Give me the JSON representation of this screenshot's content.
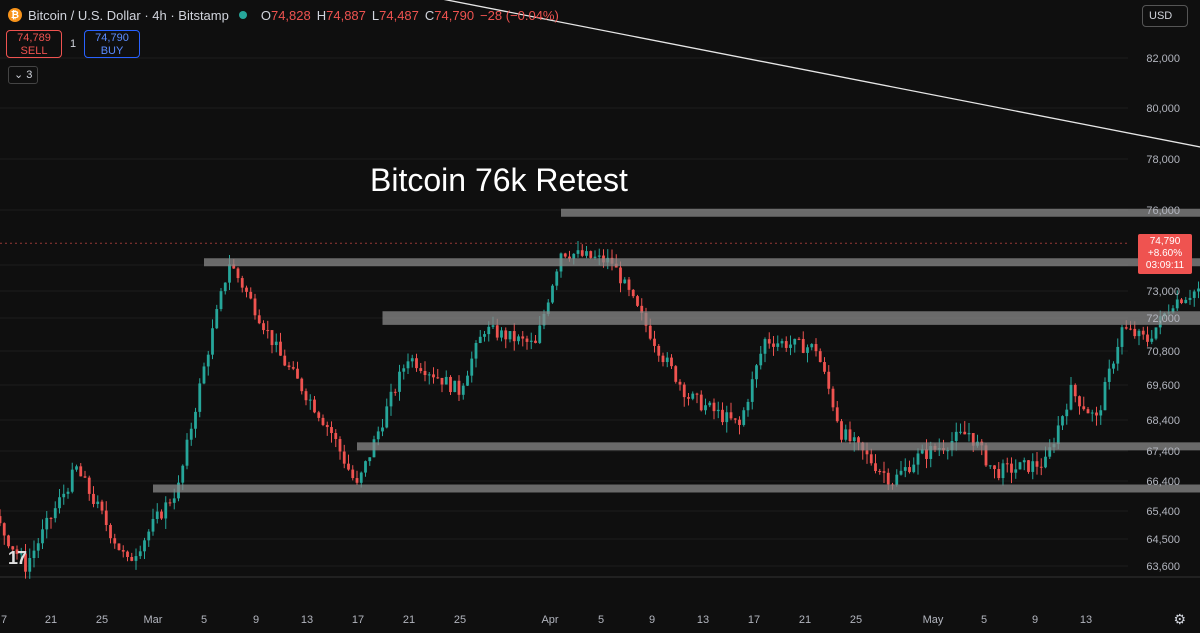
{
  "header": {
    "symbol": "Bitcoin / U.S. Dollar · 4h · Bitstamp",
    "open_label": "O",
    "open": "74,828",
    "high_label": "H",
    "high": "74,887",
    "low_label": "L",
    "low": "74,487",
    "close_label": "C",
    "close": "74,790",
    "change": "−28 (−0.04%)"
  },
  "trade": {
    "sell_price": "74,789",
    "sell_label": "SELL",
    "spread": "1",
    "buy_price": "74,790",
    "buy_label": "BUY"
  },
  "indicators_collapsed": "3",
  "currency": "USD",
  "price_label": {
    "price": "74,790",
    "change": "+8.60%",
    "countdown": "03:09:11"
  },
  "colors": {
    "up": "#26a69a",
    "down": "#ef5350",
    "zone": "#8a8a8a",
    "trendline": "#e6e6e6",
    "background": "#0f0f0f",
    "title": "#ffffff"
  },
  "chart_data": {
    "type": "candlestick",
    "title": "Bitcoin 76k Retest",
    "y_ticks": [
      82000,
      80000,
      78000,
      76000,
      74000,
      73000,
      72000,
      70800,
      69600,
      68400,
      67400,
      66400,
      65400,
      64500,
      63600
    ],
    "y_tick_labels": [
      "82,000",
      "80,000",
      "78,000",
      "76,000",
      "74,000",
      "73,000",
      "72,000",
      "70,800",
      "69,600",
      "68,400",
      "67,400",
      "66,400",
      "65,400",
      "64,500",
      "63,600"
    ],
    "x_ticks": [
      "7",
      "21",
      "25",
      "Mar",
      "5",
      "9",
      "13",
      "17",
      "21",
      "25",
      "Apr",
      "5",
      "9",
      "13",
      "17",
      "21",
      "25",
      "May",
      "5",
      "9",
      "13"
    ],
    "current_price": 74790,
    "close_path": [
      {
        "date": "Feb 15",
        "price": 68600
      },
      {
        "date": "Feb 18",
        "price": 67400
      },
      {
        "date": "Feb 20",
        "price": 68100
      },
      {
        "date": "Feb 22",
        "price": 66200
      },
      {
        "date": "Feb 24",
        "price": 63600
      },
      {
        "date": "Feb 26",
        "price": 66800
      },
      {
        "date": "Feb 28",
        "price": 63700
      },
      {
        "date": "Mar 2",
        "price": 66200
      },
      {
        "date": "Mar 3",
        "price": 70200
      },
      {
        "date": "Mar 4",
        "price": 74100
      },
      {
        "date": "Mar 6",
        "price": 70600
      },
      {
        "date": "Mar 8",
        "price": 68000
      },
      {
        "date": "Mar 9",
        "price": 66200
      },
      {
        "date": "Mar 11",
        "price": 70600
      },
      {
        "date": "Mar 13",
        "price": 69400
      },
      {
        "date": "Mar 14",
        "price": 71600
      },
      {
        "date": "Mar 16",
        "price": 71000
      },
      {
        "date": "Mar 17",
        "price": 74500
      },
      {
        "date": "Mar 19",
        "price": 74100
      },
      {
        "date": "Mar 20",
        "price": 72300
      },
      {
        "date": "Mar 21",
        "price": 70600
      },
      {
        "date": "Mar 22",
        "price": 69200
      },
      {
        "date": "Mar 24",
        "price": 68200
      },
      {
        "date": "Mar 25",
        "price": 71200
      },
      {
        "date": "Mar 27",
        "price": 70900
      },
      {
        "date": "Mar 28",
        "price": 68000
      },
      {
        "date": "Mar 30",
        "price": 66400
      },
      {
        "date": "Mar 31",
        "price": 67200
      },
      {
        "date": "Apr 2",
        "price": 68000
      },
      {
        "date": "Apr 3",
        "price": 66700
      },
      {
        "date": "Apr 5",
        "price": 67000
      },
      {
        "date": "Apr 6",
        "price": 69400
      },
      {
        "date": "Apr 7",
        "price": 68400
      },
      {
        "date": "Apr 8",
        "price": 71600
      },
      {
        "date": "Apr 9",
        "price": 71200
      },
      {
        "date": "Apr 10",
        "price": 72600
      },
      {
        "date": "Apr 12",
        "price": 73500
      },
      {
        "date": "Apr 13",
        "price": 70900
      },
      {
        "date": "Apr 14",
        "price": 75700
      },
      {
        "date": "Apr 15",
        "price": 74000
      },
      {
        "date": "Apr 16",
        "price": 74790
      }
    ],
    "zones": [
      {
        "from": "Mar 17",
        "to": "Apr 20",
        "price_low": 75800,
        "price_high": 76000
      },
      {
        "from": "Mar 3",
        "to": "Apr 14",
        "price_low": 74000,
        "price_high": 74200
      },
      {
        "from": "Mar 10",
        "to": "Apr 19",
        "price_low": 71750,
        "price_high": 72250
      },
      {
        "from": "Mar 9",
        "to": "Apr 13",
        "price_low": 67500,
        "price_high": 67600
      },
      {
        "from": "Mar 1",
        "to": "Apr 13",
        "price_low": 66100,
        "price_high": 66200
      }
    ],
    "trendline": {
      "from_date": "Mar 17",
      "from_price": 82600,
      "to_date": "May 10",
      "to_price": 73000
    }
  }
}
